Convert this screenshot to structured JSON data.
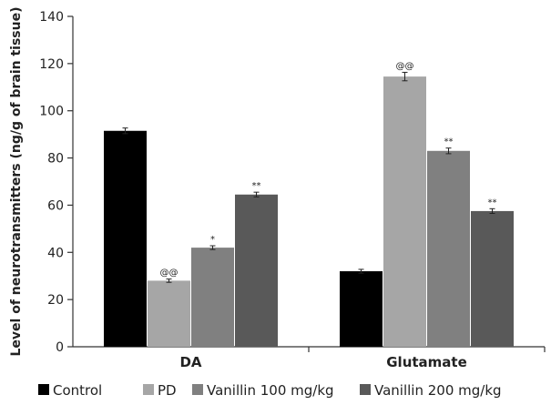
{
  "chart_data": {
    "type": "bar",
    "categories": [
      "DA",
      "Glutamate"
    ],
    "ylabel": "Level of neurotransmitters (ng/g of brain tissue)",
    "xlabel": "",
    "ylim": [
      0,
      140
    ],
    "yticks": [
      0,
      20,
      40,
      60,
      80,
      100,
      120,
      140
    ],
    "grid": false,
    "legend_position": "bottom",
    "series": [
      {
        "name": "Control",
        "color": "#000000",
        "values": [
          91.5,
          32
        ],
        "errors": [
          1.2,
          0.8
        ],
        "annotations": [
          "",
          ""
        ]
      },
      {
        "name": "PD",
        "color": "#a6a6a6",
        "values": [
          28,
          114.5
        ],
        "errors": [
          0.7,
          1.8
        ],
        "annotations": [
          "@@",
          "@@"
        ]
      },
      {
        "name": "Vanillin 100 mg/kg",
        "color": "#808080",
        "values": [
          42,
          83
        ],
        "errors": [
          0.8,
          1.2
        ],
        "annotations": [
          "*",
          "**"
        ]
      },
      {
        "name": "Vanillin 200 mg/kg",
        "color": "#595959",
        "values": [
          64.5,
          57.5
        ],
        "errors": [
          1.0,
          1.0
        ],
        "annotations": [
          "**",
          "**"
        ]
      }
    ]
  }
}
